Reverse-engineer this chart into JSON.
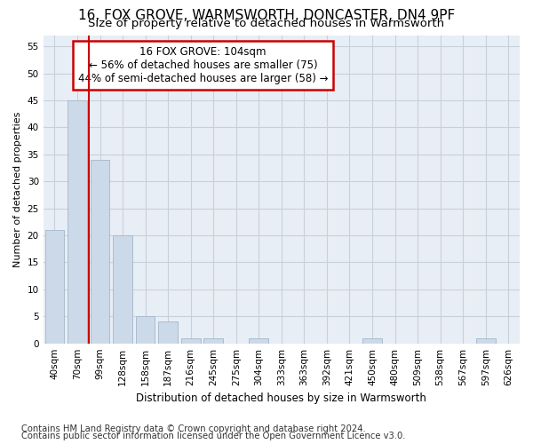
{
  "title1": "16, FOX GROVE, WARMSWORTH, DONCASTER, DN4 9PF",
  "title2": "Size of property relative to detached houses in Warmsworth",
  "xlabel": "Distribution of detached houses by size in Warmsworth",
  "ylabel": "Number of detached properties",
  "footnote1": "Contains HM Land Registry data © Crown copyright and database right 2024.",
  "footnote2": "Contains public sector information licensed under the Open Government Licence v3.0.",
  "annotation_line1": "16 FOX GROVE: 104sqm",
  "annotation_line2": "← 56% of detached houses are smaller (75)",
  "annotation_line3": "44% of semi-detached houses are larger (58) →",
  "bar_labels": [
    "40sqm",
    "70sqm",
    "99sqm",
    "128sqm",
    "158sqm",
    "187sqm",
    "216sqm",
    "245sqm",
    "275sqm",
    "304sqm",
    "333sqm",
    "363sqm",
    "392sqm",
    "421sqm",
    "450sqm",
    "480sqm",
    "509sqm",
    "538sqm",
    "567sqm",
    "597sqm",
    "626sqm"
  ],
  "bar_values": [
    21,
    45,
    34,
    20,
    5,
    4,
    1,
    1,
    0,
    1,
    0,
    0,
    0,
    0,
    1,
    0,
    0,
    0,
    0,
    1,
    0
  ],
  "bar_color": "#ccd9e8",
  "bar_edge_color": "#aabcce",
  "vline_color": "#cc0000",
  "vline_position": 1.5,
  "ylim": [
    0,
    57
  ],
  "yticks": [
    0,
    5,
    10,
    15,
    20,
    25,
    30,
    35,
    40,
    45,
    50,
    55
  ],
  "grid_color": "#c8d0dc",
  "plot_bg_color": "#e8eef5",
  "annotation_box_facecolor": "#ffffff",
  "annotation_box_edgecolor": "#cc0000",
  "title1_fontsize": 11,
  "title2_fontsize": 9.5,
  "axis_fontsize": 8,
  "xlabel_fontsize": 8.5,
  "tick_fontsize": 7.5,
  "footnote_fontsize": 7.2
}
